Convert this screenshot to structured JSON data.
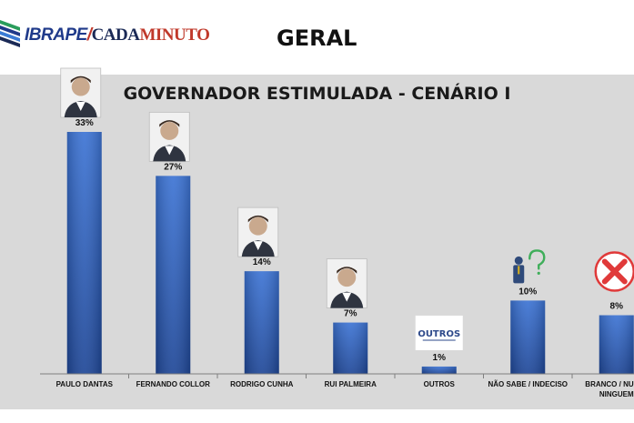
{
  "header": {
    "logo_primary": "IBRAPE",
    "logo_separator": "/",
    "logo_secondary_a": "CADA",
    "logo_secondary_b": "MINUTO",
    "title": "GERAL"
  },
  "colors": {
    "bar_top": "#3d74d4",
    "bar_bottom": "#1f4797",
    "panel_bg": "#d9d9d9",
    "logo_red": "#c0392b",
    "logo_blue": "#1f3a8a"
  },
  "chart_data": {
    "type": "bar",
    "title": "GOVERNADOR ESTIMULADA - CENÁRIO I",
    "categories": [
      "PAULO DANTAS",
      "FERNANDO COLLOR",
      "RODRIGO CUNHA",
      "RUI PALMEIRA",
      "OUTROS",
      "NÃO SABE / INDECISO",
      "BRANCO / NULO / NINGUEM"
    ],
    "category_lines": [
      [
        "PAULO DANTAS"
      ],
      [
        "FERNANDO COLLOR"
      ],
      [
        "RODRIGO CUNHA"
      ],
      [
        "RUI PALMEIRA"
      ],
      [
        "OUTROS"
      ],
      [
        "NÃO SABE / INDECISO"
      ],
      [
        "BRANCO / NULO /",
        "NINGUEM"
      ]
    ],
    "values": [
      33,
      27,
      14,
      7,
      1,
      10,
      8
    ],
    "value_labels": [
      "33%",
      "27%",
      "14%",
      "7%",
      "1%",
      "10%",
      "8%"
    ],
    "ylim": [
      0,
      35
    ],
    "grid": false,
    "legend": "none",
    "badges": [
      {
        "kind": "photo",
        "icon": "person-photo-icon"
      },
      {
        "kind": "photo",
        "icon": "person-photo-icon"
      },
      {
        "kind": "photo",
        "icon": "person-photo-icon"
      },
      {
        "kind": "photo",
        "icon": "person-photo-icon"
      },
      {
        "kind": "label",
        "icon": "outros-badge-icon",
        "text": "OUTROS"
      },
      {
        "kind": "undecided",
        "icon": "undecided-person-icon"
      },
      {
        "kind": "cross",
        "icon": "red-x-icon"
      }
    ]
  }
}
